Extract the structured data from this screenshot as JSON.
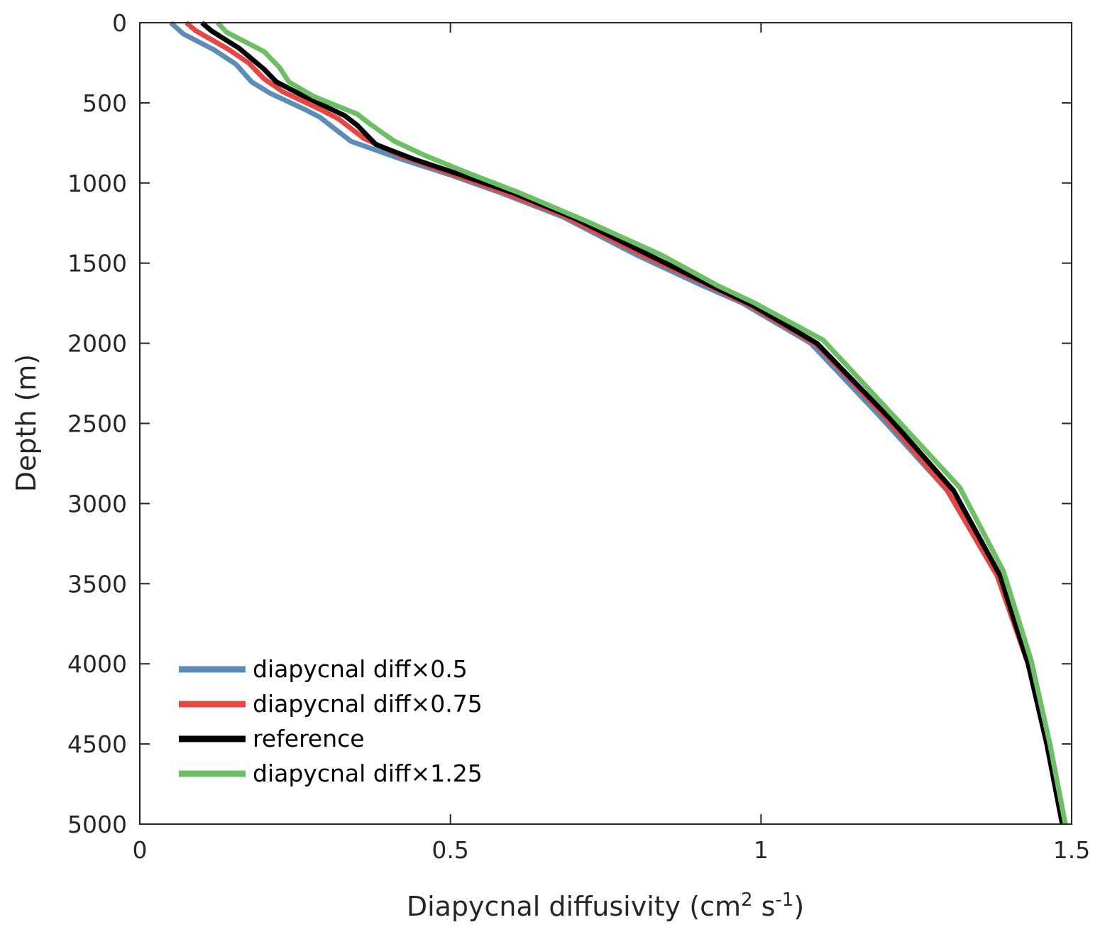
{
  "chart_data": {
    "type": "line",
    "xlabel": "Diapycnal diffusivity (cm",
    "xlabel_sup1": "2",
    "xlabel_mid": " s",
    "xlabel_sup2": "-1",
    "xlabel_end": ")",
    "ylabel": "Depth (m)",
    "xlim": [
      0,
      1.5
    ],
    "ylim": [
      0,
      5000
    ],
    "y_reversed": true,
    "x_ticks": [
      0,
      0.5,
      1,
      1.5
    ],
    "x_tick_labels": [
      "0",
      "0.5",
      "1",
      "1.5"
    ],
    "y_ticks": [
      0,
      500,
      1000,
      1500,
      2000,
      2500,
      3000,
      3500,
      4000,
      4500,
      5000
    ],
    "y_tick_labels": [
      "0",
      "500",
      "1000",
      "1500",
      "2000",
      "2500",
      "3000",
      "3500",
      "4000",
      "4500",
      "5000"
    ],
    "grid": false,
    "legend_position": "bottom-left",
    "series": [
      {
        "name": "diapycnal diff×0.5",
        "color": "#5b8db8",
        "points": [
          [
            0.05,
            0
          ],
          [
            0.07,
            70
          ],
          [
            0.12,
            170
          ],
          [
            0.155,
            260
          ],
          [
            0.18,
            370
          ],
          [
            0.21,
            440
          ],
          [
            0.265,
            540
          ],
          [
            0.29,
            590
          ],
          [
            0.34,
            740
          ],
          [
            0.42,
            850
          ],
          [
            0.5,
            950
          ],
          [
            0.58,
            1060
          ],
          [
            0.68,
            1210
          ],
          [
            0.8,
            1450
          ],
          [
            0.9,
            1630
          ],
          [
            0.97,
            1750
          ],
          [
            1.08,
            2000
          ],
          [
            1.19,
            2450
          ],
          [
            1.3,
            2920
          ],
          [
            1.38,
            3450
          ],
          [
            1.43,
            4000
          ],
          [
            1.46,
            4500
          ],
          [
            1.485,
            5000
          ]
        ]
      },
      {
        "name": "diapycnal diff×0.75",
        "color": "#e84545",
        "points": [
          [
            0.075,
            0
          ],
          [
            0.09,
            50
          ],
          [
            0.14,
            160
          ],
          [
            0.175,
            250
          ],
          [
            0.2,
            350
          ],
          [
            0.23,
            430
          ],
          [
            0.29,
            540
          ],
          [
            0.32,
            600
          ],
          [
            0.36,
            720
          ],
          [
            0.42,
            830
          ],
          [
            0.5,
            940
          ],
          [
            0.58,
            1050
          ],
          [
            0.68,
            1200
          ],
          [
            0.81,
            1450
          ],
          [
            0.91,
            1630
          ],
          [
            0.98,
            1760
          ],
          [
            1.09,
            2010
          ],
          [
            1.2,
            2460
          ],
          [
            1.3,
            2920
          ],
          [
            1.38,
            3450
          ],
          [
            1.43,
            4000
          ],
          [
            1.46,
            4500
          ],
          [
            1.485,
            5000
          ]
        ]
      },
      {
        "name": "reference",
        "color": "#000000",
        "points": [
          [
            0.1,
            0
          ],
          [
            0.115,
            50
          ],
          [
            0.16,
            160
          ],
          [
            0.2,
            290
          ],
          [
            0.22,
            370
          ],
          [
            0.26,
            450
          ],
          [
            0.33,
            580
          ],
          [
            0.35,
            640
          ],
          [
            0.38,
            760
          ],
          [
            0.44,
            850
          ],
          [
            0.51,
            940
          ],
          [
            0.6,
            1060
          ],
          [
            0.7,
            1220
          ],
          [
            0.82,
            1450
          ],
          [
            0.92,
            1640
          ],
          [
            0.985,
            1760
          ],
          [
            1.09,
            2000
          ],
          [
            1.21,
            2480
          ],
          [
            1.31,
            2920
          ],
          [
            1.385,
            3450
          ],
          [
            1.43,
            4000
          ],
          [
            1.46,
            4500
          ],
          [
            1.485,
            5000
          ]
        ]
      },
      {
        "name": "diapycnal diff×1.25",
        "color": "#6dbf65",
        "points": [
          [
            0.125,
            0
          ],
          [
            0.14,
            60
          ],
          [
            0.2,
            180
          ],
          [
            0.225,
            280
          ],
          [
            0.24,
            370
          ],
          [
            0.28,
            460
          ],
          [
            0.35,
            570
          ],
          [
            0.37,
            630
          ],
          [
            0.41,
            740
          ],
          [
            0.46,
            830
          ],
          [
            0.53,
            940
          ],
          [
            0.61,
            1060
          ],
          [
            0.72,
            1240
          ],
          [
            0.84,
            1450
          ],
          [
            0.93,
            1640
          ],
          [
            0.99,
            1750
          ],
          [
            1.1,
            1980
          ],
          [
            1.22,
            2480
          ],
          [
            1.32,
            2900
          ],
          [
            1.39,
            3420
          ],
          [
            1.435,
            3980
          ],
          [
            1.465,
            4500
          ],
          [
            1.49,
            5000
          ]
        ]
      }
    ]
  }
}
